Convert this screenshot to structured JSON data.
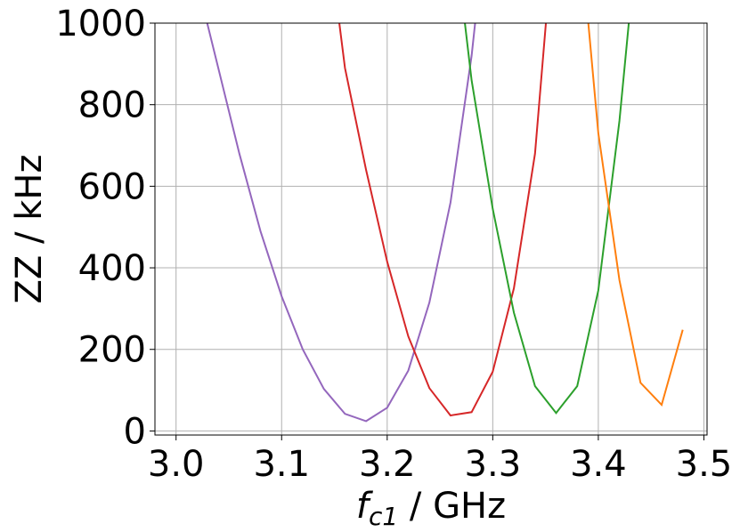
{
  "chart_data": {
    "type": "line",
    "xlabel_var": "f",
    "xlabel_sub": "c1",
    "xlabel_rest": " / GHz",
    "ylabel": "ZZ / kHz",
    "xlim": [
      2.98,
      3.503
    ],
    "ylim": [
      -10,
      1000
    ],
    "xticks": [
      3.0,
      3.1,
      3.2,
      3.3,
      3.4,
      3.5
    ],
    "xtick_labels": [
      "3.0",
      "3.1",
      "3.2",
      "3.3",
      "3.4",
      "3.5"
    ],
    "yticks": [
      0,
      200,
      400,
      600,
      800,
      1000
    ],
    "ytick_labels": [
      "0",
      "200",
      "400",
      "600",
      "800",
      "1000"
    ],
    "grid": true,
    "series": [
      {
        "color": "#9467bd",
        "x": [
          3.0,
          3.02,
          3.04,
          3.06,
          3.08,
          3.1,
          3.12,
          3.14,
          3.16,
          3.18,
          3.2,
          3.22,
          3.24,
          3.26,
          3.28,
          3.3
        ],
        "y": [
          1400,
          1100,
          890,
          680,
          490,
          330,
          200,
          103,
          42,
          24,
          57,
          148,
          315,
          560,
          920,
          1400
        ]
      },
      {
        "color": "#d62728",
        "x": [
          3.14,
          3.16,
          3.18,
          3.2,
          3.22,
          3.24,
          3.26,
          3.28,
          3.3,
          3.32,
          3.34,
          3.36
        ],
        "y": [
          1300,
          890,
          640,
          415,
          232,
          105,
          38,
          46,
          145,
          350,
          680,
          1300
        ]
      },
      {
        "color": "#2ca02c",
        "x": [
          3.26,
          3.28,
          3.3,
          3.32,
          3.34,
          3.36,
          3.38,
          3.4,
          3.42,
          3.44
        ],
        "y": [
          1300,
          860,
          545,
          290,
          110,
          44,
          110,
          345,
          760,
          1300
        ]
      },
      {
        "color": "#ff7f0e",
        "x": [
          3.38,
          3.4,
          3.42,
          3.44,
          3.46,
          3.48
        ],
        "y": [
          1300,
          730,
          370,
          118,
          64,
          248
        ]
      }
    ]
  }
}
